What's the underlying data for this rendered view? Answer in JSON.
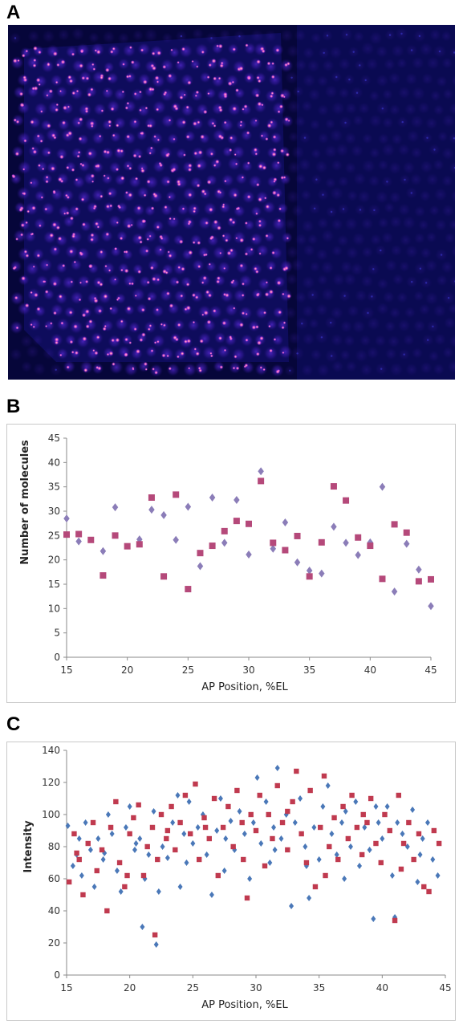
{
  "panels": {
    "a": "A",
    "b": "B",
    "c": "C"
  },
  "chart_data": [
    {
      "type": "scatter",
      "title": "",
      "xlabel": "AP Position, %EL",
      "ylabel": "Number of molecules",
      "xlim": [
        15,
        45
      ],
      "ylim": [
        0,
        45
      ],
      "xticks": [
        15,
        20,
        25,
        30,
        35,
        40,
        45
      ],
      "yticks": [
        0,
        5,
        10,
        15,
        20,
        25,
        30,
        35,
        40,
        45
      ],
      "grid": false,
      "legend": "none",
      "series": [
        {
          "marker": "diamond",
          "color": "#8b7db8",
          "points": [
            [
              15,
              28.5
            ],
            [
              16,
              23.8
            ],
            [
              18,
              21.8
            ],
            [
              19,
              30.8
            ],
            [
              21,
              24.2
            ],
            [
              22,
              30.3
            ],
            [
              23,
              29.2
            ],
            [
              24,
              24.1
            ],
            [
              25,
              30.9
            ],
            [
              26,
              18.7
            ],
            [
              27,
              32.8
            ],
            [
              28,
              23.5
            ],
            [
              29,
              32.3
            ],
            [
              30,
              21.1
            ],
            [
              31,
              38.2
            ],
            [
              32,
              22.3
            ],
            [
              33,
              27.7
            ],
            [
              34,
              19.5
            ],
            [
              35,
              17.8
            ],
            [
              36,
              17.2
            ],
            [
              37,
              26.8
            ],
            [
              38,
              23.5
            ],
            [
              39,
              21
            ],
            [
              40,
              23.6
            ],
            [
              41,
              35
            ],
            [
              42,
              13.5
            ],
            [
              43,
              23.3
            ],
            [
              44,
              18
            ],
            [
              45,
              10.5
            ]
          ]
        },
        {
          "marker": "square",
          "color": "#b5497a",
          "points": [
            [
              15,
              25.2
            ],
            [
              16,
              25.3
            ],
            [
              17,
              24.1
            ],
            [
              18,
              16.8
            ],
            [
              19,
              25
            ],
            [
              20,
              22.8
            ],
            [
              21,
              23.2
            ],
            [
              22,
              32.8
            ],
            [
              23,
              16.6
            ],
            [
              24,
              33.4
            ],
            [
              25,
              14
            ],
            [
              26,
              21.4
            ],
            [
              27,
              22.9
            ],
            [
              28,
              25.9
            ],
            [
              29,
              28
            ],
            [
              30,
              27.4
            ],
            [
              31,
              36.2
            ],
            [
              32,
              23.5
            ],
            [
              33,
              22
            ],
            [
              34,
              24.9
            ],
            [
              35,
              16.6
            ],
            [
              36,
              23.6
            ],
            [
              37,
              35.1
            ],
            [
              38,
              32.2
            ],
            [
              39,
              24.6
            ],
            [
              40,
              22.9
            ],
            [
              41,
              16.1
            ],
            [
              42,
              27.3
            ],
            [
              43,
              25.6
            ],
            [
              44,
              15.6
            ],
            [
              45,
              16
            ]
          ]
        }
      ]
    },
    {
      "type": "scatter",
      "title": "",
      "xlabel": "AP Position, %EL",
      "ylabel": "Intensity",
      "xlim": [
        15,
        45
      ],
      "ylim": [
        0,
        140
      ],
      "xticks": [
        15,
        20,
        25,
        30,
        35,
        40,
        45
      ],
      "yticks": [
        0,
        20,
        40,
        60,
        80,
        100,
        120,
        140
      ],
      "grid": false,
      "legend": "none",
      "series": [
        {
          "marker": "diamond",
          "color": "#4a78b8",
          "points": [
            [
              15.1,
              93
            ],
            [
              15.5,
              68
            ],
            [
              15.8,
              75
            ],
            [
              16.2,
              62
            ],
            [
              16.5,
              95
            ],
            [
              16.9,
              78
            ],
            [
              17.2,
              55
            ],
            [
              17.5,
              85
            ],
            [
              17.9,
              72
            ],
            [
              18.3,
              100
            ],
            [
              18.6,
              88
            ],
            [
              19,
              65
            ],
            [
              19.3,
              52
            ],
            [
              19.7,
              92
            ],
            [
              20,
              105
            ],
            [
              20.4,
              78
            ],
            [
              20.8,
              85
            ],
            [
              21,
              30
            ],
            [
              21.2,
              60
            ],
            [
              21.5,
              75
            ],
            [
              21.9,
              102
            ],
            [
              22.1,
              19
            ],
            [
              22.3,
              52
            ],
            [
              22.6,
              80
            ],
            [
              23,
              73
            ],
            [
              23.4,
              95
            ],
            [
              23.8,
              112
            ],
            [
              24,
              55
            ],
            [
              24.3,
              88
            ],
            [
              24.7,
              108
            ],
            [
              25,
              82
            ],
            [
              25.4,
              92
            ],
            [
              25.8,
              100
            ],
            [
              26.1,
              75
            ],
            [
              26.5,
              50
            ],
            [
              26.9,
              90
            ],
            [
              27.2,
              110
            ],
            [
              27.6,
              85
            ],
            [
              28,
              96
            ],
            [
              28.3,
              78
            ],
            [
              28.7,
              102
            ],
            [
              29.1,
              88
            ],
            [
              29.5,
              60
            ],
            [
              29.8,
              95
            ],
            [
              30.1,
              123
            ],
            [
              30.4,
              82
            ],
            [
              30.8,
              108
            ],
            [
              31.1,
              70
            ],
            [
              31.4,
              92
            ],
            [
              31.7,
              129
            ],
            [
              32,
              85
            ],
            [
              32.4,
              100
            ],
            [
              32.8,
              43
            ],
            [
              33.1,
              95
            ],
            [
              33.5,
              110
            ],
            [
              33.9,
              80
            ],
            [
              34.2,
              48
            ],
            [
              34.6,
              92
            ],
            [
              35,
              72
            ],
            [
              35.3,
              105
            ],
            [
              35.7,
              118
            ],
            [
              36,
              88
            ],
            [
              36.4,
              75
            ],
            [
              36.8,
              95
            ],
            [
              37.1,
              102
            ],
            [
              37.5,
              80
            ],
            [
              37.9,
              108
            ],
            [
              38.2,
              68
            ],
            [
              38.6,
              92
            ],
            [
              39,
              78
            ],
            [
              39.3,
              35
            ],
            [
              39.7,
              95
            ],
            [
              40,
              85
            ],
            [
              40.4,
              105
            ],
            [
              40.8,
              62
            ],
            [
              41,
              36
            ],
            [
              41.2,
              95
            ],
            [
              41.6,
              88
            ],
            [
              42,
              80
            ],
            [
              42.4,
              103
            ],
            [
              42.8,
              58
            ],
            [
              43.2,
              85
            ],
            [
              43.6,
              95
            ],
            [
              44,
              72
            ],
            [
              44.4,
              62
            ],
            [
              16,
              85
            ],
            [
              18,
              76
            ],
            [
              20.5,
              82
            ],
            [
              24.5,
              70
            ],
            [
              27.5,
              65
            ],
            [
              31.5,
              78
            ],
            [
              34,
              68
            ],
            [
              37,
              60
            ],
            [
              39.5,
              105
            ],
            [
              43,
              75
            ]
          ]
        },
        {
          "marker": "square",
          "color": "#c03a4f",
          "points": [
            [
              15.2,
              58
            ],
            [
              15.6,
              88
            ],
            [
              16,
              72
            ],
            [
              16.3,
              50
            ],
            [
              16.7,
              82
            ],
            [
              17.1,
              95
            ],
            [
              17.4,
              65
            ],
            [
              17.8,
              78
            ],
            [
              18.2,
              40
            ],
            [
              18.5,
              92
            ],
            [
              18.9,
              108
            ],
            [
              19.2,
              70
            ],
            [
              19.6,
              55
            ],
            [
              20,
              88
            ],
            [
              20.3,
              98
            ],
            [
              20.7,
              106
            ],
            [
              21.1,
              62
            ],
            [
              21.4,
              80
            ],
            [
              21.8,
              92
            ],
            [
              22,
              25
            ],
            [
              22.2,
              72
            ],
            [
              22.5,
              100
            ],
            [
              22.9,
              85
            ],
            [
              23.3,
              105
            ],
            [
              23.6,
              78
            ],
            [
              24,
              95
            ],
            [
              24.4,
              112
            ],
            [
              24.8,
              88
            ],
            [
              25.2,
              119
            ],
            [
              25.5,
              72
            ],
            [
              25.9,
              98
            ],
            [
              26.3,
              85
            ],
            [
              26.7,
              110
            ],
            [
              27,
              62
            ],
            [
              27.4,
              92
            ],
            [
              27.8,
              105
            ],
            [
              28.2,
              80
            ],
            [
              28.5,
              115
            ],
            [
              28.9,
              95
            ],
            [
              29.3,
              48
            ],
            [
              29.6,
              100
            ],
            [
              30,
              90
            ],
            [
              30.3,
              112
            ],
            [
              30.7,
              68
            ],
            [
              31,
              100
            ],
            [
              31.3,
              85
            ],
            [
              31.7,
              118
            ],
            [
              32.1,
              95
            ],
            [
              32.5,
              78
            ],
            [
              32.9,
              108
            ],
            [
              33.2,
              127
            ],
            [
              33.6,
              88
            ],
            [
              34,
              70
            ],
            [
              34.3,
              115
            ],
            [
              34.7,
              55
            ],
            [
              35.1,
              92
            ],
            [
              35.4,
              124
            ],
            [
              35.8,
              80
            ],
            [
              36.2,
              98
            ],
            [
              36.5,
              72
            ],
            [
              36.9,
              105
            ],
            [
              37.3,
              85
            ],
            [
              37.6,
              112
            ],
            [
              38,
              92
            ],
            [
              38.4,
              75
            ],
            [
              38.8,
              95
            ],
            [
              39.1,
              110
            ],
            [
              39.5,
              82
            ],
            [
              39.9,
              70
            ],
            [
              40.2,
              100
            ],
            [
              40.6,
              90
            ],
            [
              41,
              34
            ],
            [
              41.3,
              112
            ],
            [
              41.7,
              82
            ],
            [
              42.1,
              95
            ],
            [
              42.5,
              72
            ],
            [
              42.9,
              88
            ],
            [
              43.3,
              55
            ],
            [
              43.7,
              52
            ],
            [
              44.1,
              90
            ],
            [
              44.5,
              82
            ],
            [
              15.8,
              76
            ],
            [
              19.8,
              62
            ],
            [
              23,
              90
            ],
            [
              26,
              92
            ],
            [
              29,
              72
            ],
            [
              32.5,
              102
            ],
            [
              35.5,
              62
            ],
            [
              38.5,
              100
            ],
            [
              41.5,
              66
            ]
          ]
        }
      ]
    }
  ]
}
